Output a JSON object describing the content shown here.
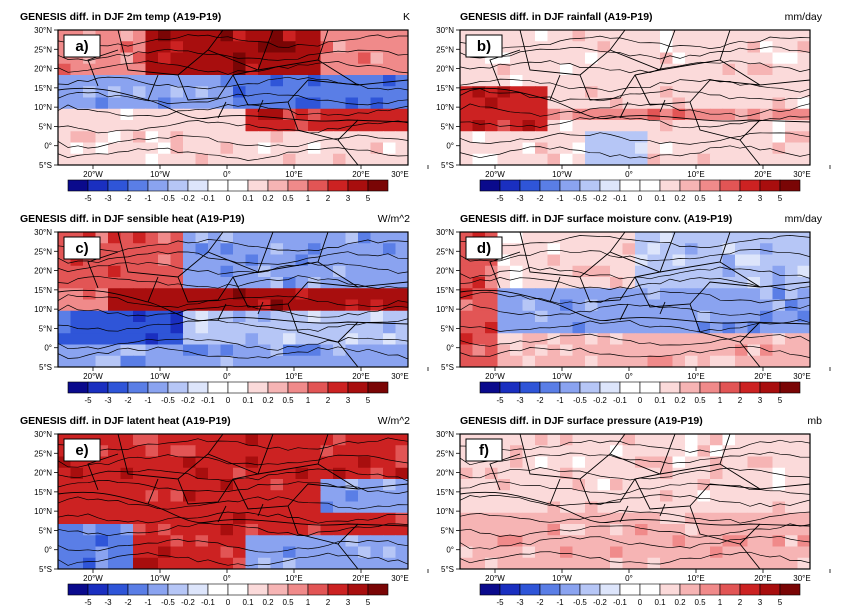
{
  "panels": [
    {
      "id": "a",
      "label": "a)",
      "title": "GENESIS diff. in DJF 2m temp (A19-P19)",
      "units": "K",
      "pattern": "temp"
    },
    {
      "id": "b",
      "label": "b)",
      "title": "GENESIS diff. in DJF rainfall (A19-P19)",
      "units": "mm/day",
      "pattern": "rain"
    },
    {
      "id": "c",
      "label": "c)",
      "title": "GENESIS diff. in DJF sensible heat (A19-P19)",
      "units": "W/m^2",
      "pattern": "sens"
    },
    {
      "id": "d",
      "label": "d)",
      "title": "GENESIS diff. in DJF surface moisture conv. (A19-P19)",
      "units": "mm/day",
      "pattern": "moist"
    },
    {
      "id": "e",
      "label": "e)",
      "title": "GENESIS diff. in DJF latent heat (A19-P19)",
      "units": "W/m^2",
      "pattern": "lat"
    },
    {
      "id": "f",
      "label": "f)",
      "title": "GENESIS diff. in DJF surface pressure (A19-P19)",
      "units": "mb",
      "pattern": "pres"
    }
  ],
  "lat_ticks": [
    "30°N",
    "25°N",
    "20°N",
    "15°N",
    "10°N",
    "5°N",
    "0°",
    "5°S"
  ],
  "lon_ticks": [
    "20°W",
    "10°W",
    "0°",
    "10°E",
    "20°E",
    "30°E"
  ],
  "colorbar": {
    "labels": [
      "-5",
      "-3",
      "-2",
      "-1",
      "-0.5",
      "-0.2",
      "-0.1",
      "0",
      "0.1",
      "0.2",
      "0.5",
      "1",
      "2",
      "3",
      "5"
    ],
    "colors": [
      "#0a0a8c",
      "#1a2fc0",
      "#2f55d8",
      "#5a7ee6",
      "#8aa3f0",
      "#b6c6f6",
      "#dde5fb",
      "#ffffff",
      "#ffffff",
      "#fbdada",
      "#f6b4b4",
      "#f08a8a",
      "#e25555",
      "#cc2222",
      "#a80e0e",
      "#7a0505"
    ]
  }
}
